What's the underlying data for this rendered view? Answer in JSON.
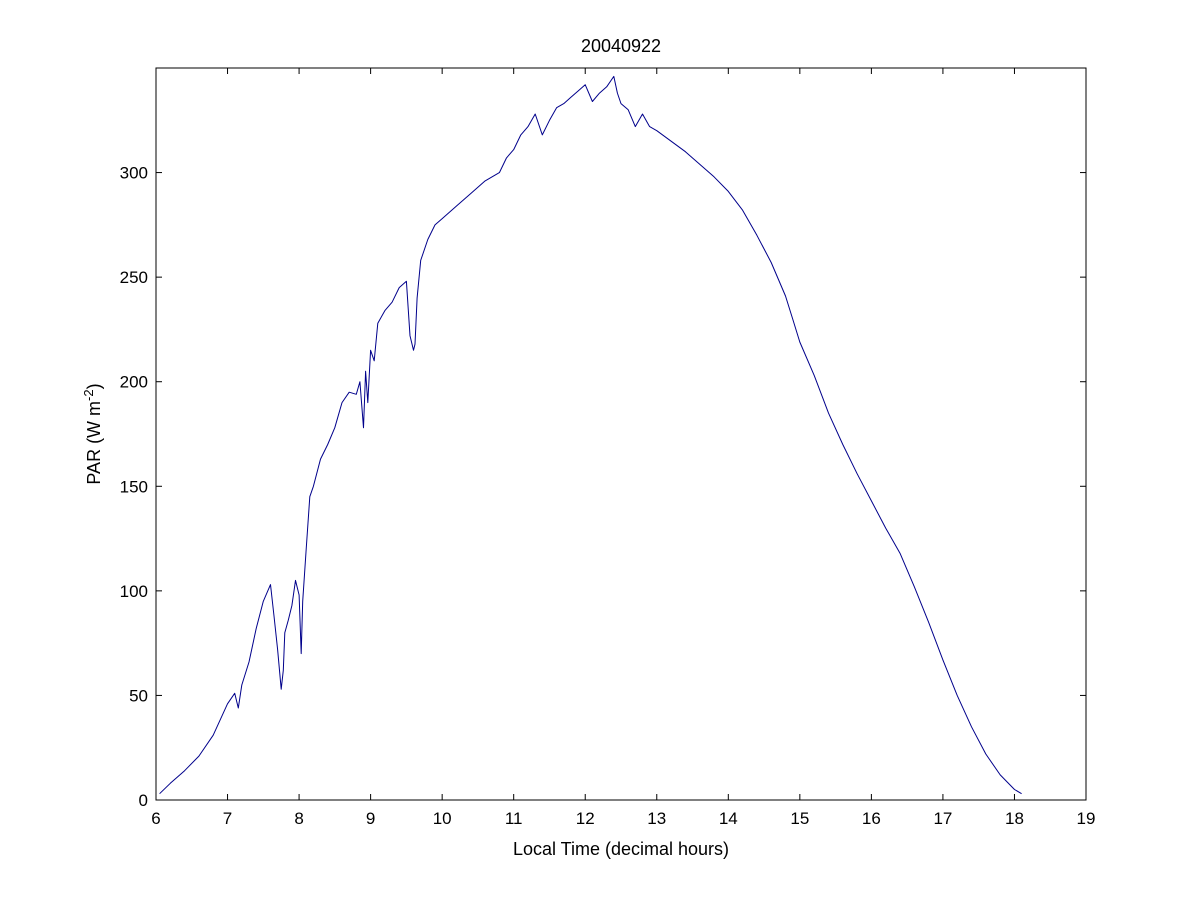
{
  "chart_data": {
    "type": "line",
    "title": "20040922",
    "xlabel": "Local Time (decimal hours)",
    "ylabel": {
      "main": "PAR (W m",
      "superscript": "-2",
      "close": ")"
    },
    "xlim": [
      6,
      19
    ],
    "ylim": [
      0,
      350
    ],
    "xticks": [
      6,
      7,
      8,
      9,
      10,
      11,
      12,
      13,
      14,
      15,
      16,
      17,
      18,
      19
    ],
    "yticks": [
      0,
      50,
      100,
      150,
      200,
      250,
      300
    ],
    "grid": false,
    "line_color": "#00008b",
    "series": [
      {
        "x": [
          6.05,
          6.2,
          6.4,
          6.6,
          6.8,
          7.0,
          7.1,
          7.15,
          7.2,
          7.3,
          7.4,
          7.5,
          7.6,
          7.65,
          7.7,
          7.75,
          7.78,
          7.8,
          7.85,
          7.9,
          7.95,
          8.0,
          8.03,
          8.05,
          8.08,
          8.1,
          8.15,
          8.2,
          8.3,
          8.4,
          8.5,
          8.6,
          8.7,
          8.8,
          8.85,
          8.9,
          8.93,
          8.96,
          9.0,
          9.05,
          9.1,
          9.2,
          9.3,
          9.4,
          9.5,
          9.55,
          9.6,
          9.62,
          9.65,
          9.7,
          9.8,
          9.9,
          10.0,
          10.2,
          10.4,
          10.6,
          10.8,
          10.9,
          11.0,
          11.1,
          11.2,
          11.3,
          11.4,
          11.5,
          11.6,
          11.7,
          11.8,
          11.9,
          12.0,
          12.1,
          12.2,
          12.3,
          12.4,
          12.45,
          12.5,
          12.6,
          12.7,
          12.8,
          12.9,
          13.0,
          13.2,
          13.4,
          13.6,
          13.8,
          14.0,
          14.2,
          14.4,
          14.6,
          14.8,
          14.9,
          15.0,
          15.2,
          15.4,
          15.6,
          15.8,
          16.0,
          16.2,
          16.4,
          16.6,
          16.8,
          17.0,
          17.2,
          17.4,
          17.6,
          17.8,
          18.0,
          18.1
        ],
        "y": [
          3,
          8,
          14,
          21,
          31,
          46,
          51,
          44,
          55,
          66,
          82,
          95,
          103,
          88,
          72,
          53,
          62,
          80,
          86,
          93,
          105,
          98,
          70,
          95,
          110,
          120,
          145,
          150,
          163,
          170,
          178,
          190,
          195,
          194,
          200,
          178,
          205,
          190,
          215,
          210,
          228,
          234,
          238,
          245,
          248,
          222,
          215,
          218,
          240,
          258,
          268,
          275,
          278,
          284,
          290,
          296,
          300,
          307,
          311,
          318,
          322,
          328,
          318,
          325,
          331,
          333,
          336,
          339,
          342,
          334,
          338,
          341,
          346,
          338,
          333,
          330,
          322,
          328,
          322,
          320,
          315,
          310,
          304,
          298,
          291,
          282,
          270,
          257,
          241,
          230,
          219,
          203,
          185,
          170,
          156,
          143,
          130,
          118,
          102,
          85,
          67,
          50,
          35,
          22,
          12,
          5,
          3
        ]
      }
    ]
  }
}
